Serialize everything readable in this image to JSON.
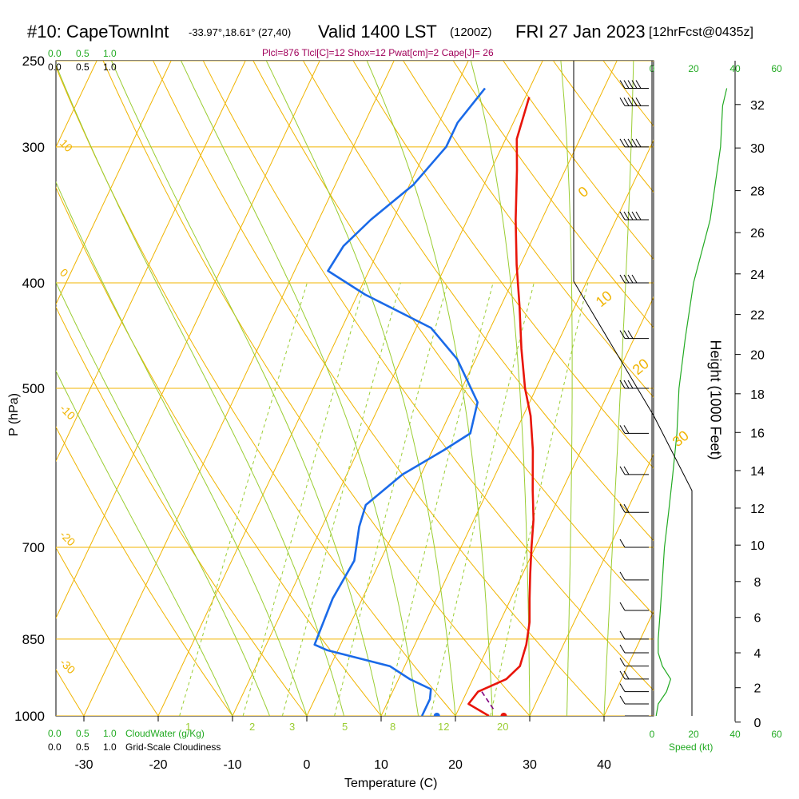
{
  "header": {
    "station": "#10: CapeTownInt",
    "coords": "-33.97°,18.61° (27,40)",
    "valid": "Valid 1400 LST",
    "zulu": "(1200Z)",
    "date": "FRI 27 Jan 2023",
    "forecast": "[12hrFcst@0435z]",
    "indices": "Plcl=876 Tlcl[C]=12 Shox=12 Pwat[cm]=2 Cape[J]= 26"
  },
  "colors": {
    "isotherm": "#f0b400",
    "dry_adiabat": "#f0b400",
    "moist_adiabat": "#9acd32",
    "mixing_ratio": "#9acd32",
    "temperature": "#e8150a",
    "dewpoint": "#1a6ae8",
    "parcel": "#800080",
    "speed": "#22aa22",
    "indices": "#a0005a"
  },
  "left_scale": {
    "green": [
      "0.0",
      "0.5",
      "1.0"
    ],
    "black": [
      "0.0",
      "0.5",
      "1.0"
    ],
    "cloudwater_label": "CloudWater (g/Kg)",
    "cloudiness_label": "Grid-Scale Cloudiness"
  },
  "speed_axis": {
    "label": "Speed (kt)",
    "ticks": [
      "0",
      "20",
      "40",
      "60"
    ]
  },
  "chart_data": {
    "type": "line",
    "title": "#10: CapeTownInt",
    "xlabel": "Temperature (C)",
    "ylabel": "P (hPa)",
    "y2label": "Height (1000 Feet)",
    "xlim": [
      -35,
      45
    ],
    "ylim": [
      1000,
      250
    ],
    "yscale": "log",
    "x_ticks": [
      "-30",
      "-20",
      "-10",
      "0",
      "10",
      "20",
      "30",
      "40"
    ],
    "p_ticks": [
      "250",
      "300",
      "400",
      "500",
      "700",
      "850",
      "1000"
    ],
    "height_ticks": [
      "0",
      "2",
      "4",
      "6",
      "8",
      "10",
      "12",
      "14",
      "16",
      "18",
      "20",
      "22",
      "24",
      "26",
      "28",
      "30",
      "32"
    ],
    "dry_adiabat_labels": [
      "10",
      "0",
      "-10",
      "-20",
      "-30"
    ],
    "moist_adiabat_labels": [
      "0",
      "10",
      "20",
      "30"
    ],
    "mixing_ratio_labels": [
      "1",
      "2",
      "3",
      "5",
      "8",
      "12",
      "20"
    ],
    "series": [
      {
        "name": "Temperature",
        "points": [
          [
            24.5,
            1000
          ],
          [
            21,
            975
          ],
          [
            21.5,
            950
          ],
          [
            24.5,
            925
          ],
          [
            25.5,
            900
          ],
          [
            25,
            860
          ],
          [
            24,
            820
          ],
          [
            22.5,
            780
          ],
          [
            21,
            740
          ],
          [
            19.5,
            700
          ],
          [
            18,
            660
          ],
          [
            16,
            620
          ],
          [
            13.5,
            570
          ],
          [
            11,
            530
          ],
          [
            8.5,
            500
          ],
          [
            5.5,
            460
          ],
          [
            2.5,
            420
          ],
          [
            -0.5,
            385
          ],
          [
            -3.5,
            350
          ],
          [
            -6.5,
            315
          ],
          [
            -8.5,
            295
          ],
          [
            -9.5,
            270
          ]
        ]
      },
      {
        "name": "Dewpoint",
        "points": [
          [
            15.5,
            1000
          ],
          [
            15.5,
            965
          ],
          [
            15,
            945
          ],
          [
            11.5,
            925
          ],
          [
            8,
            900
          ],
          [
            -1.5,
            870
          ],
          [
            -3.5,
            860
          ],
          [
            -4,
            780
          ],
          [
            -3.5,
            720
          ],
          [
            -5,
            670
          ],
          [
            -5.5,
            640
          ],
          [
            -2.5,
            600
          ],
          [
            1.5,
            570
          ],
          [
            4,
            550
          ],
          [
            3,
            515
          ],
          [
            -2.5,
            470
          ],
          [
            -8,
            440
          ],
          [
            -19,
            410
          ],
          [
            -25.5,
            390
          ],
          [
            -25,
            370
          ],
          [
            -23,
            350
          ],
          [
            -19.5,
            325
          ],
          [
            -17.5,
            300
          ],
          [
            -17.5,
            285
          ],
          [
            -16,
            265
          ]
        ]
      },
      {
        "name": "Parcel",
        "points": [
          [
            22,
            950
          ],
          [
            25,
            990
          ]
        ]
      }
    ],
    "surface": {
      "temperature": 26.5,
      "dewpoint": 17.5
    },
    "wind_speed_kt": [
      [
        1000,
        2
      ],
      [
        975,
        3
      ],
      [
        950,
        7
      ],
      [
        925,
        9
      ],
      [
        900,
        5
      ],
      [
        875,
        3
      ],
      [
        850,
        3
      ],
      [
        800,
        4
      ],
      [
        750,
        5
      ],
      [
        700,
        6
      ],
      [
        650,
        8
      ],
      [
        600,
        10
      ],
      [
        550,
        12
      ],
      [
        500,
        13
      ],
      [
        450,
        16
      ],
      [
        400,
        20
      ],
      [
        350,
        28
      ],
      [
        300,
        33
      ],
      [
        275,
        34
      ],
      [
        265,
        36
      ]
    ]
  }
}
